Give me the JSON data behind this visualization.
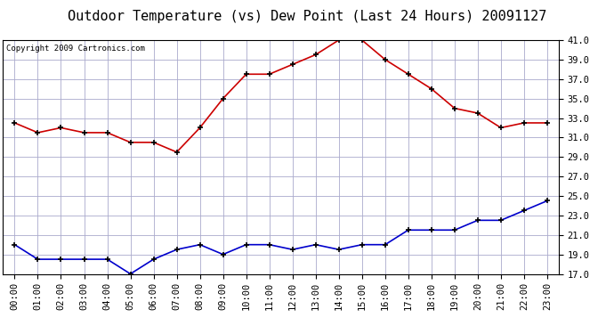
{
  "title": "Outdoor Temperature (vs) Dew Point (Last 24 Hours) 20091127",
  "copyright": "Copyright 2009 Cartronics.com",
  "x_labels": [
    "00:00",
    "01:00",
    "02:00",
    "03:00",
    "04:00",
    "05:00",
    "06:00",
    "07:00",
    "08:00",
    "09:00",
    "10:00",
    "11:00",
    "12:00",
    "13:00",
    "14:00",
    "15:00",
    "16:00",
    "17:00",
    "18:00",
    "19:00",
    "20:00",
    "21:00",
    "22:00",
    "23:00"
  ],
  "temp_data": [
    32.5,
    31.5,
    32.0,
    31.5,
    31.5,
    30.5,
    30.5,
    29.5,
    32.0,
    35.0,
    37.5,
    37.5,
    38.5,
    39.5,
    41.0,
    41.0,
    39.0,
    37.5,
    36.0,
    34.0,
    33.5,
    32.0,
    32.5,
    32.5
  ],
  "dew_data": [
    20.0,
    18.5,
    18.5,
    18.5,
    18.5,
    17.0,
    18.5,
    19.5,
    20.0,
    19.0,
    20.0,
    20.0,
    19.5,
    20.0,
    19.5,
    20.0,
    20.0,
    21.5,
    21.5,
    21.5,
    22.5,
    22.5,
    23.5,
    24.5
  ],
  "temp_color": "#cc0000",
  "dew_color": "#0000cc",
  "ylim_min": 17.0,
  "ylim_max": 41.0,
  "ytick_step": 2.0,
  "bg_color": "#ffffff",
  "plot_bg": "#ffffff",
  "grid_color": "#aaaacc",
  "title_fontsize": 11,
  "copyright_fontsize": 6.5,
  "axis_fontsize": 7.5
}
